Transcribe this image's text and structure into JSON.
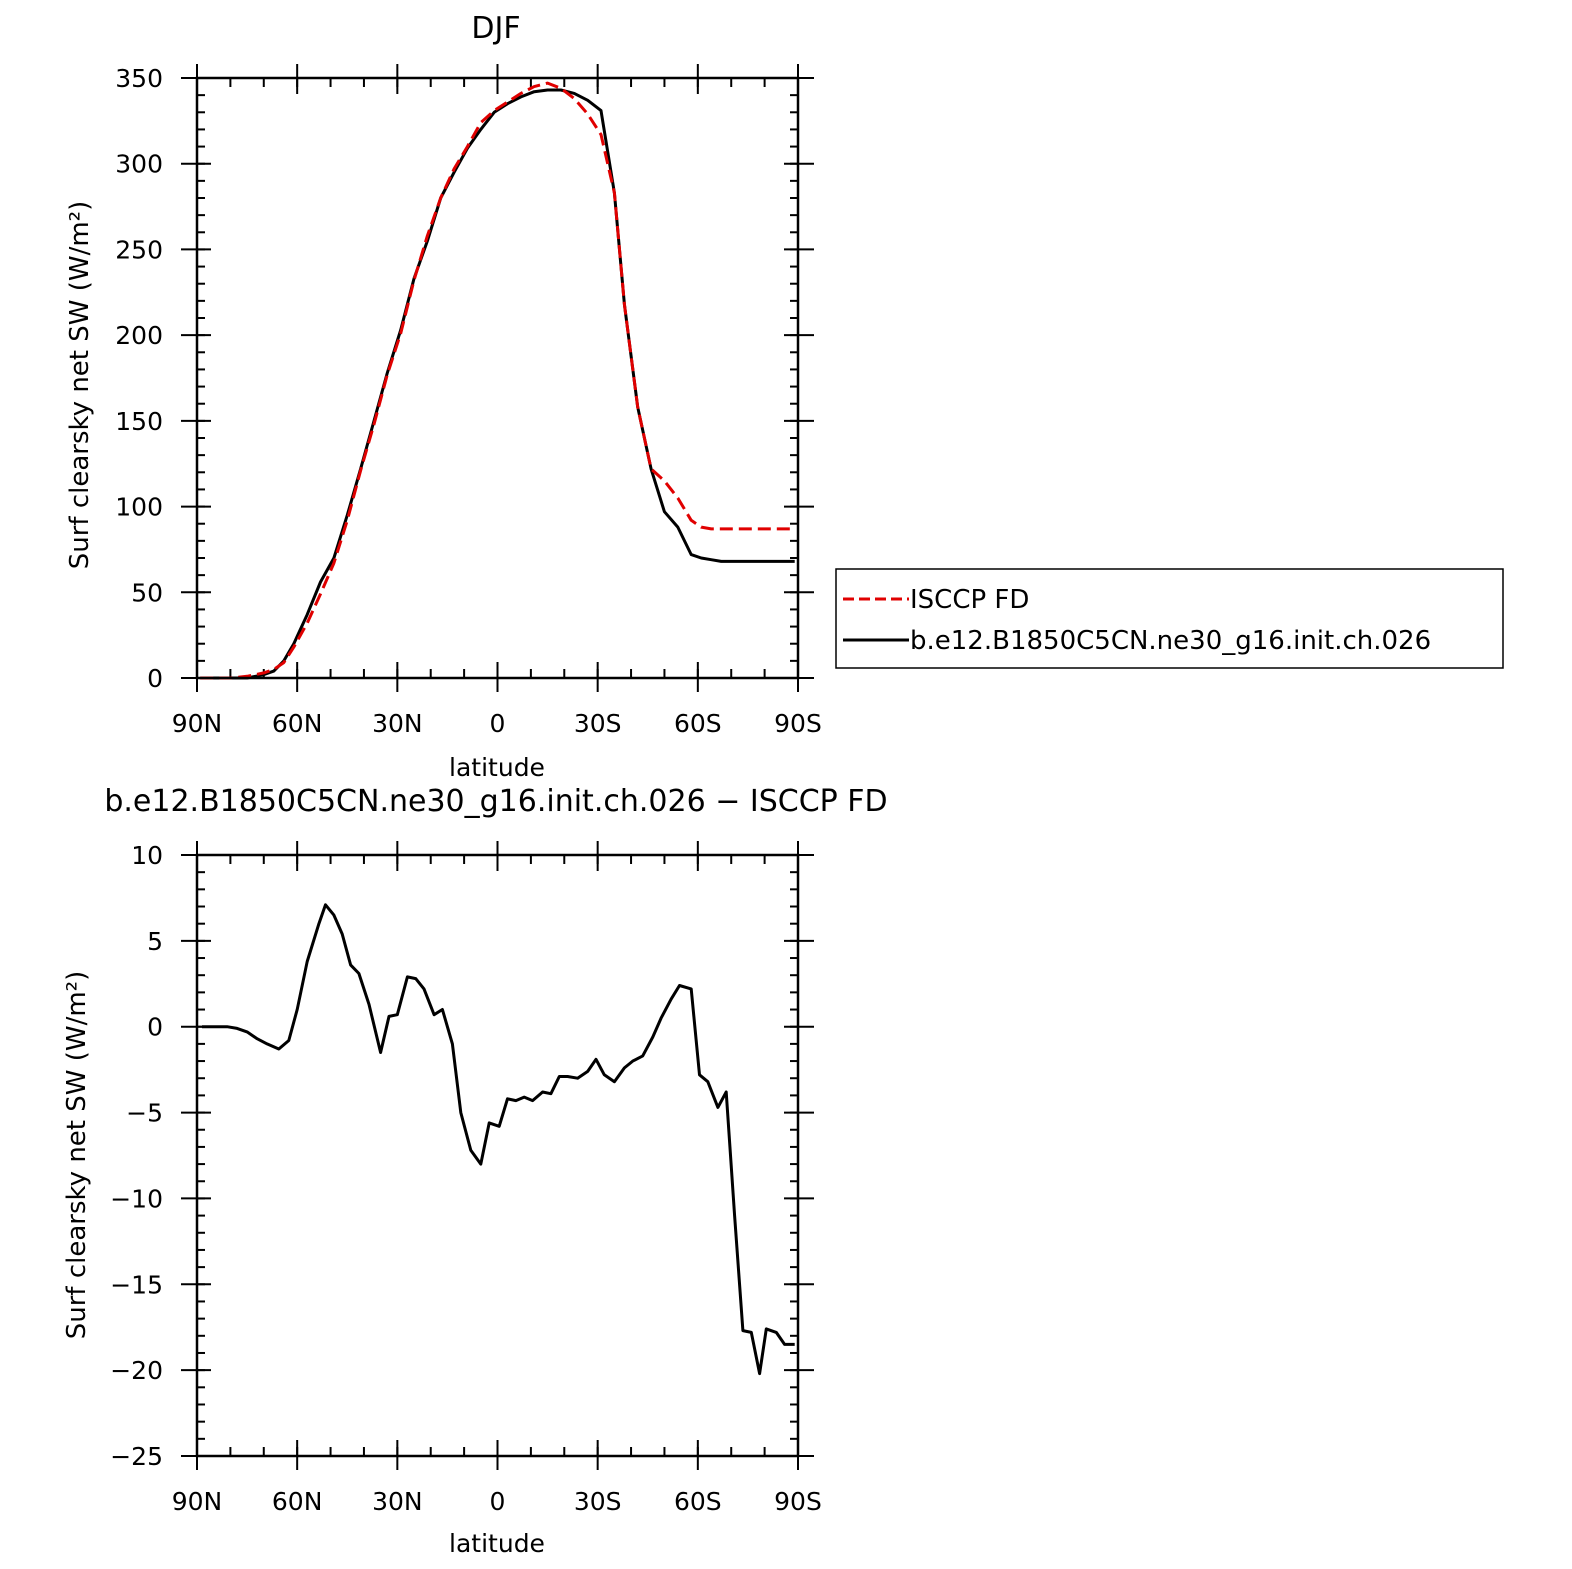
{
  "chart_data": [
    {
      "type": "line",
      "title": "DJF",
      "xlabel": "latitude",
      "ylabel": "Surf clearsky net SW (W/m²)",
      "xlim": [
        90,
        -90
      ],
      "ylim": [
        0,
        350
      ],
      "x_tick_values": [
        90,
        60,
        30,
        0,
        -30,
        -60,
        -90
      ],
      "x_tick_labels": [
        "90N",
        "60N",
        "30N",
        "0",
        "30S",
        "60S",
        "90S"
      ],
      "y_tick_values": [
        0,
        50,
        100,
        150,
        200,
        250,
        300,
        350
      ],
      "y_tick_labels": [
        "0",
        "50",
        "100",
        "150",
        "200",
        "250",
        "300",
        "350"
      ],
      "legend_placement": "right",
      "series": [
        {
          "name": "ISCCP FD",
          "color": "#e00000",
          "dash": "dashed",
          "x": [
            89,
            85,
            80,
            75,
            70,
            67,
            64,
            61,
            57,
            53,
            49,
            45,
            41,
            37,
            33,
            29,
            25,
            21,
            17,
            13,
            9,
            5,
            1,
            -3,
            -7,
            -11,
            -15,
            -19,
            -23,
            -27,
            -31,
            -35,
            -38,
            -42,
            -46,
            -50,
            -54,
            -58,
            -61,
            -64,
            -67,
            -70,
            -72,
            -74,
            -78,
            -82,
            -86,
            -89
          ],
          "y": [
            0,
            0,
            0,
            1,
            3,
            5,
            9,
            18,
            32,
            49,
            67,
            92,
            121,
            148,
            177,
            201,
            232,
            258,
            280,
            297,
            310,
            324,
            331,
            336,
            341,
            345,
            347,
            344,
            338,
            329,
            317,
            283,
            218,
            158,
            122,
            115,
            105,
            92,
            88,
            87,
            87,
            87,
            87,
            87,
            87,
            87,
            87,
            87
          ]
        },
        {
          "name": "b.e12.B1850C5CN.ne30_g16.init.ch.026",
          "color": "#000000",
          "dash": "solid",
          "x": [
            89,
            85,
            80,
            75,
            70,
            67,
            64,
            61,
            57,
            53,
            49,
            45,
            41,
            37,
            33,
            29,
            25,
            21,
            17,
            13,
            9,
            5,
            1,
            -3,
            -7,
            -11,
            -15,
            -19,
            -23,
            -27,
            -31,
            -35,
            -38,
            -42,
            -46,
            -50,
            -54,
            -58,
            -61,
            -64,
            -67,
            -70,
            -72,
            -74,
            -78,
            -82,
            -86,
            -89
          ],
          "y": [
            0,
            0,
            0,
            0,
            2,
            4,
            10,
            20,
            37,
            56,
            70,
            95,
            122,
            150,
            178,
            203,
            233,
            255,
            280,
            295,
            309,
            320,
            330,
            335,
            339,
            342,
            343,
            343,
            341,
            337,
            331,
            283,
            218,
            158,
            122,
            97,
            88,
            72,
            70,
            69,
            68,
            68,
            68,
            68,
            68,
            68,
            68,
            68
          ]
        }
      ]
    },
    {
      "type": "line",
      "title": "b.e12.B1850C5CN.ne30_g16.init.ch.026 − ISCCP FD",
      "xlabel": "latitude",
      "ylabel": "Surf clearsky net SW (W/m²)",
      "xlim": [
        90,
        -90
      ],
      "ylim": [
        -25,
        10
      ],
      "x_tick_values": [
        90,
        60,
        30,
        0,
        -30,
        -60,
        -90
      ],
      "x_tick_labels": [
        "90N",
        "60N",
        "30N",
        "0",
        "30S",
        "60S",
        "90S"
      ],
      "y_tick_values": [
        10,
        5,
        0,
        -5,
        -10,
        -15,
        -20,
        -25
      ],
      "y_tick_labels": [
        "10",
        "5",
        "0",
        "−5",
        "−10",
        "−15",
        "−20",
        "−25"
      ],
      "series": [
        {
          "color": "#000000",
          "dash": "solid",
          "x": [
            88.5,
            85,
            81,
            78,
            75,
            72,
            69,
            65.5,
            62.5,
            60,
            57,
            53.5,
            51.5,
            49,
            46.5,
            44,
            41.5,
            38.5,
            35,
            32.5,
            30,
            27,
            24.5,
            22,
            19,
            16.5,
            13.5,
            11,
            8,
            5,
            2.5,
            -0.5,
            -3,
            -5.5,
            -8,
            -10.5,
            -13.5,
            -16,
            -18.5,
            -21,
            -24,
            -27,
            -29.5,
            -32,
            -35,
            -38,
            -40.5,
            -43.5,
            -46.5,
            -49,
            -52,
            -54.5,
            -58,
            -60.5,
            -63,
            -66,
            -68.5,
            -71,
            -73.5,
            -76,
            -78.5,
            -80.5,
            -83.5,
            -86,
            -89
          ],
          "y": [
            0,
            0,
            0,
            -0.1,
            -0.3,
            -0.7,
            -1.0,
            -1.3,
            -0.8,
            1.0,
            3.8,
            6.0,
            7.1,
            6.5,
            5.4,
            3.6,
            3.1,
            1.3,
            -1.5,
            0.6,
            0.7,
            2.9,
            2.8,
            2.2,
            0.7,
            1.0,
            -1.0,
            -5.0,
            -7.2,
            -8.0,
            -5.6,
            -5.8,
            -4.2,
            -4.3,
            -4.1,
            -4.3,
            -3.8,
            -3.9,
            -2.9,
            -2.9,
            -3.0,
            -2.6,
            -1.9,
            -2.8,
            -3.2,
            -2.4,
            -2.0,
            -1.7,
            -0.6,
            0.5,
            1.6,
            2.4,
            2.2,
            -2.8,
            -3.2,
            -4.7,
            -3.8,
            -11.0,
            -17.7,
            -17.8,
            -20.2,
            -17.6,
            -17.8,
            -18.5,
            -18.5
          ]
        }
      ]
    }
  ]
}
